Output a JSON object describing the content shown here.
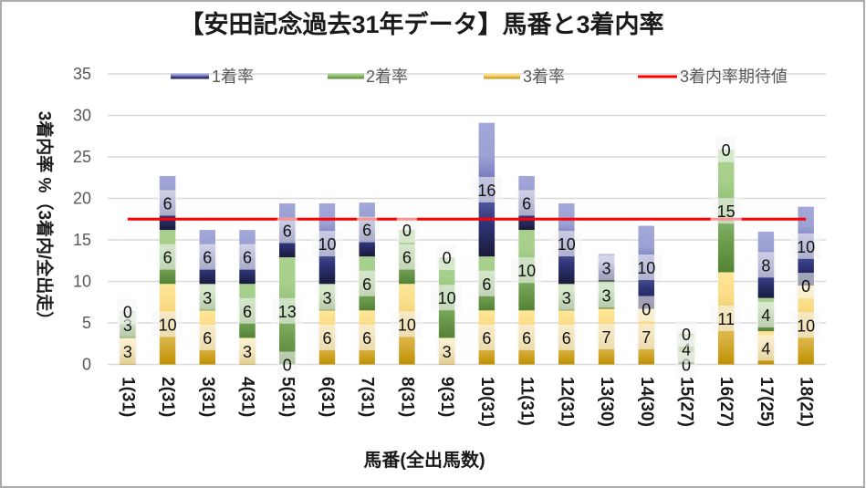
{
  "chart_data": {
    "type": "bar",
    "stacked": true,
    "title": "【安田記念過去31年データ】馬番と3着内率",
    "xlabel": "馬番(全出馬数)",
    "ylabel": "3着内率 %（3着内/全出走）",
    "ylim": [
      0,
      35
    ],
    "y_ticks": [
      "0",
      "5",
      "10",
      "15",
      "20",
      "25",
      "30",
      "35"
    ],
    "grid": true,
    "legend_position": "top",
    "categories": [
      "1(31)",
      "2(31)",
      "3(31)",
      "4(31)",
      "5(31)",
      "6(31)",
      "7(31)",
      "8(31)",
      "9(31)",
      "10(31)",
      "11(31)",
      "12(31)",
      "13(30)",
      "14(30)",
      "15(27)",
      "16(27)",
      "17(25)",
      "18(21)"
    ],
    "series": [
      {
        "name": "1着率",
        "gradient": [
          "#A3A7D9",
          "#9CA1D3",
          "#6469B0",
          "#30357A",
          "#191A3A"
        ],
        "values": [
          0,
          6.5,
          6.5,
          6.5,
          6.5,
          9.7,
          6.5,
          0,
          0,
          16.1,
          6.5,
          9.7,
          3.3,
          10.0,
          0,
          0,
          8.0,
          9.5
        ],
        "labels": [
          "0",
          "6",
          "6",
          "6",
          "6",
          "10",
          "6",
          "0",
          "0",
          "16",
          "6",
          "10",
          "3",
          "10",
          "0",
          "0",
          "8",
          "10"
        ]
      },
      {
        "name": "2着率",
        "gradient": [
          "#A9D18E",
          "#A6CF8B",
          "#8DBB71",
          "#6E9D50",
          "#548235"
        ],
        "values": [
          3.2,
          6.5,
          3.2,
          6.5,
          12.9,
          3.2,
          6.5,
          6.5,
          9.7,
          6.5,
          9.7,
          3.2,
          3.3,
          0,
          3.7,
          14.8,
          4.0,
          0
        ],
        "labels": [
          "3",
          "6",
          "3",
          "6",
          "13",
          "3",
          "6",
          "6",
          "10",
          "6",
          "10",
          "3",
          "3",
          "0",
          "4",
          "15",
          "4",
          "0"
        ]
      },
      {
        "name": "3着率",
        "gradient": [
          "#FFE699",
          "#FBDD88",
          "#EBC865",
          "#D6AE3C",
          "#BF9000"
        ],
        "values": [
          3.2,
          9.7,
          6.5,
          3.2,
          0,
          6.5,
          6.5,
          9.7,
          3.2,
          6.5,
          6.5,
          6.5,
          6.7,
          6.7,
          0,
          11.1,
          4.0,
          9.5
        ],
        "labels": [
          "3",
          "10",
          "6",
          "3",
          "0",
          "6",
          "6",
          "10",
          "3",
          "6",
          "6",
          "6",
          "7",
          "7",
          "0",
          "11",
          "4",
          "10"
        ]
      }
    ],
    "reference_line": {
      "name": "3着内率期待値",
      "value": 17.5,
      "color": "#FF0000"
    }
  }
}
